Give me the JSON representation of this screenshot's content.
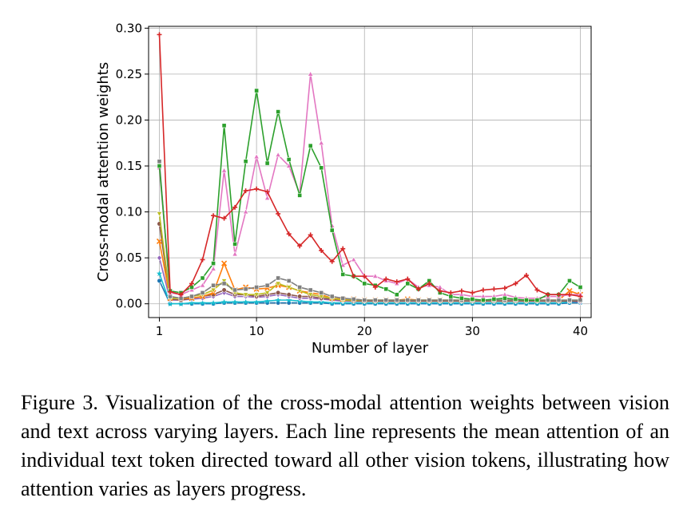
{
  "chart_data": {
    "type": "line",
    "title": "",
    "xlabel": "Number of layer",
    "ylabel": "Cross-modal attention weights",
    "xlim": [
      0.0,
      41.0
    ],
    "ylim": [
      -0.015,
      0.302
    ],
    "xticks": [
      1,
      10,
      20,
      30,
      40
    ],
    "xtick_labels": [
      "1",
      "10",
      "20",
      "30",
      "40"
    ],
    "yticks": [
      0.0,
      0.05,
      0.1,
      0.15,
      0.2,
      0.25,
      0.3
    ],
    "ytick_labels": [
      "0.00",
      "0.05",
      "0.10",
      "0.15",
      "0.20",
      "0.25",
      "0.30"
    ],
    "grid": true,
    "legend": "none",
    "x": [
      1,
      2,
      3,
      4,
      5,
      6,
      7,
      8,
      9,
      10,
      11,
      12,
      13,
      14,
      15,
      16,
      17,
      18,
      19,
      20,
      21,
      22,
      23,
      24,
      25,
      26,
      27,
      28,
      29,
      30,
      31,
      32,
      33,
      34,
      35,
      36,
      37,
      38,
      39,
      40
    ],
    "series": [
      {
        "color": "#d62728",
        "marker": "plus",
        "values": [
          0.293,
          0.013,
          0.01,
          0.022,
          0.048,
          0.096,
          0.093,
          0.105,
          0.123,
          0.125,
          0.122,
          0.098,
          0.076,
          0.063,
          0.075,
          0.058,
          0.046,
          0.06,
          0.03,
          0.03,
          0.018,
          0.027,
          0.024,
          0.027,
          0.016,
          0.022,
          0.014,
          0.012,
          0.014,
          0.012,
          0.015,
          0.016,
          0.017,
          0.022,
          0.031,
          0.015,
          0.01,
          0.01,
          0.01,
          0.008
        ]
      },
      {
        "color": "#2ca02c",
        "marker": "square",
        "values": [
          0.15,
          0.014,
          0.012,
          0.018,
          0.028,
          0.044,
          0.194,
          0.065,
          0.155,
          0.232,
          0.153,
          0.209,
          0.157,
          0.118,
          0.172,
          0.148,
          0.08,
          0.032,
          0.03,
          0.022,
          0.02,
          0.016,
          0.01,
          0.022,
          0.016,
          0.025,
          0.012,
          0.008,
          0.006,
          0.005,
          0.004,
          0.005,
          0.006,
          0.005,
          0.004,
          0.004,
          0.01,
          0.01,
          0.025,
          0.018
        ]
      },
      {
        "color": "#e377c2",
        "marker": "triangle",
        "values": [
          0.148,
          0.012,
          0.01,
          0.015,
          0.02,
          0.038,
          0.145,
          0.054,
          0.1,
          0.16,
          0.115,
          0.162,
          0.15,
          0.12,
          0.25,
          0.175,
          0.085,
          0.042,
          0.048,
          0.03,
          0.03,
          0.025,
          0.022,
          0.027,
          0.018,
          0.02,
          0.018,
          0.01,
          0.01,
          0.008,
          0.008,
          0.008,
          0.01,
          0.007,
          0.006,
          0.006,
          0.008,
          0.008,
          0.01,
          0.01
        ]
      },
      {
        "color": "#7f7f7f",
        "marker": "square",
        "values": [
          0.155,
          0.008,
          0.006,
          0.008,
          0.012,
          0.02,
          0.022,
          0.015,
          0.016,
          0.018,
          0.02,
          0.028,
          0.025,
          0.018,
          0.015,
          0.012,
          0.008,
          0.006,
          0.005,
          0.004,
          0.004,
          0.004,
          0.004,
          0.004,
          0.004,
          0.004,
          0.004,
          0.004,
          0.004,
          0.004,
          0.004,
          0.004,
          0.004,
          0.004,
          0.004,
          0.004,
          0.004,
          0.004,
          0.004,
          0.004
        ]
      },
      {
        "color": "#bcbd22",
        "marker": "triangle-down",
        "values": [
          0.098,
          0.006,
          0.006,
          0.008,
          0.01,
          0.015,
          0.025,
          0.012,
          0.01,
          0.01,
          0.012,
          0.022,
          0.018,
          0.014,
          0.01,
          0.008,
          0.006,
          0.004,
          0.004,
          0.004,
          0.004,
          0.004,
          0.004,
          0.004,
          0.004,
          0.004,
          0.004,
          0.004,
          0.004,
          0.004,
          0.004,
          0.004,
          0.004,
          0.004,
          0.004,
          0.004,
          0.004,
          0.004,
          0.004,
          0.004
        ]
      },
      {
        "color": "#ff7f0e",
        "marker": "x",
        "values": [
          0.068,
          0.006,
          0.006,
          0.006,
          0.008,
          0.012,
          0.044,
          0.015,
          0.018,
          0.016,
          0.017,
          0.02,
          0.018,
          0.014,
          0.012,
          0.01,
          0.006,
          0.005,
          0.005,
          0.004,
          0.004,
          0.004,
          0.004,
          0.005,
          0.004,
          0.004,
          0.004,
          0.004,
          0.004,
          0.004,
          0.004,
          0.004,
          0.004,
          0.004,
          0.004,
          0.004,
          0.004,
          0.004,
          0.014,
          0.01
        ]
      },
      {
        "color": "#8c564b",
        "marker": "circle",
        "values": [
          0.087,
          0.005,
          0.004,
          0.006,
          0.008,
          0.01,
          0.015,
          0.01,
          0.01,
          0.008,
          0.01,
          0.012,
          0.01,
          0.008,
          0.008,
          0.006,
          0.005,
          0.004,
          0.003,
          0.003,
          0.003,
          0.003,
          0.003,
          0.003,
          0.003,
          0.003,
          0.003,
          0.003,
          0.003,
          0.003,
          0.003,
          0.003,
          0.003,
          0.003,
          0.003,
          0.003,
          0.003,
          0.003,
          0.003,
          0.003
        ]
      },
      {
        "color": "#9467bd",
        "marker": "diamond",
        "values": [
          0.05,
          0.004,
          0.004,
          0.005,
          0.006,
          0.008,
          0.012,
          0.008,
          0.008,
          0.007,
          0.008,
          0.01,
          0.008,
          0.006,
          0.006,
          0.005,
          0.004,
          0.003,
          0.003,
          0.003,
          0.003,
          0.003,
          0.003,
          0.003,
          0.003,
          0.003,
          0.003,
          0.003,
          0.003,
          0.003,
          0.003,
          0.003,
          0.003,
          0.003,
          0.003,
          0.003,
          0.003,
          0.003,
          0.003,
          0.002
        ]
      },
      {
        "color": "#17becf",
        "marker": "star",
        "values": [
          0.033,
          0.0,
          0.0,
          0.001,
          0.001,
          0.001,
          0.002,
          0.002,
          0.002,
          0.002,
          0.003,
          0.004,
          0.004,
          0.003,
          0.002,
          0.002,
          0.001,
          0.001,
          0.001,
          0.001,
          0.001,
          0.001,
          0.001,
          0.001,
          0.001,
          0.001,
          0.001,
          0.001,
          0.001,
          0.001,
          0.001,
          0.001,
          0.001,
          0.001,
          0.001,
          0.001,
          0.001,
          0.001,
          0.002,
          0.002
        ]
      },
      {
        "color": "#1f77b4",
        "marker": "circle",
        "values": [
          0.025,
          0.0,
          0.0,
          0.0,
          0.0,
          0.0,
          0.001,
          0.001,
          0.001,
          0.001,
          0.001,
          0.001,
          0.001,
          0.001,
          0.001,
          0.001,
          0.0,
          0.0,
          0.0,
          0.0,
          0.0,
          0.0,
          0.0,
          0.0,
          0.0,
          0.0,
          0.0,
          0.0,
          0.0,
          0.0,
          0.0,
          0.0,
          0.0,
          0.0,
          0.0,
          0.0,
          0.0,
          0.0,
          0.001,
          0.001
        ]
      }
    ]
  },
  "caption": {
    "text": "Figure 3.  Visualization of the cross-modal attention weights between vision and text across varying layers. Each line represents the mean attention of an individual text token directed toward all other vision tokens, illustrating how attention varies as layers progress."
  }
}
